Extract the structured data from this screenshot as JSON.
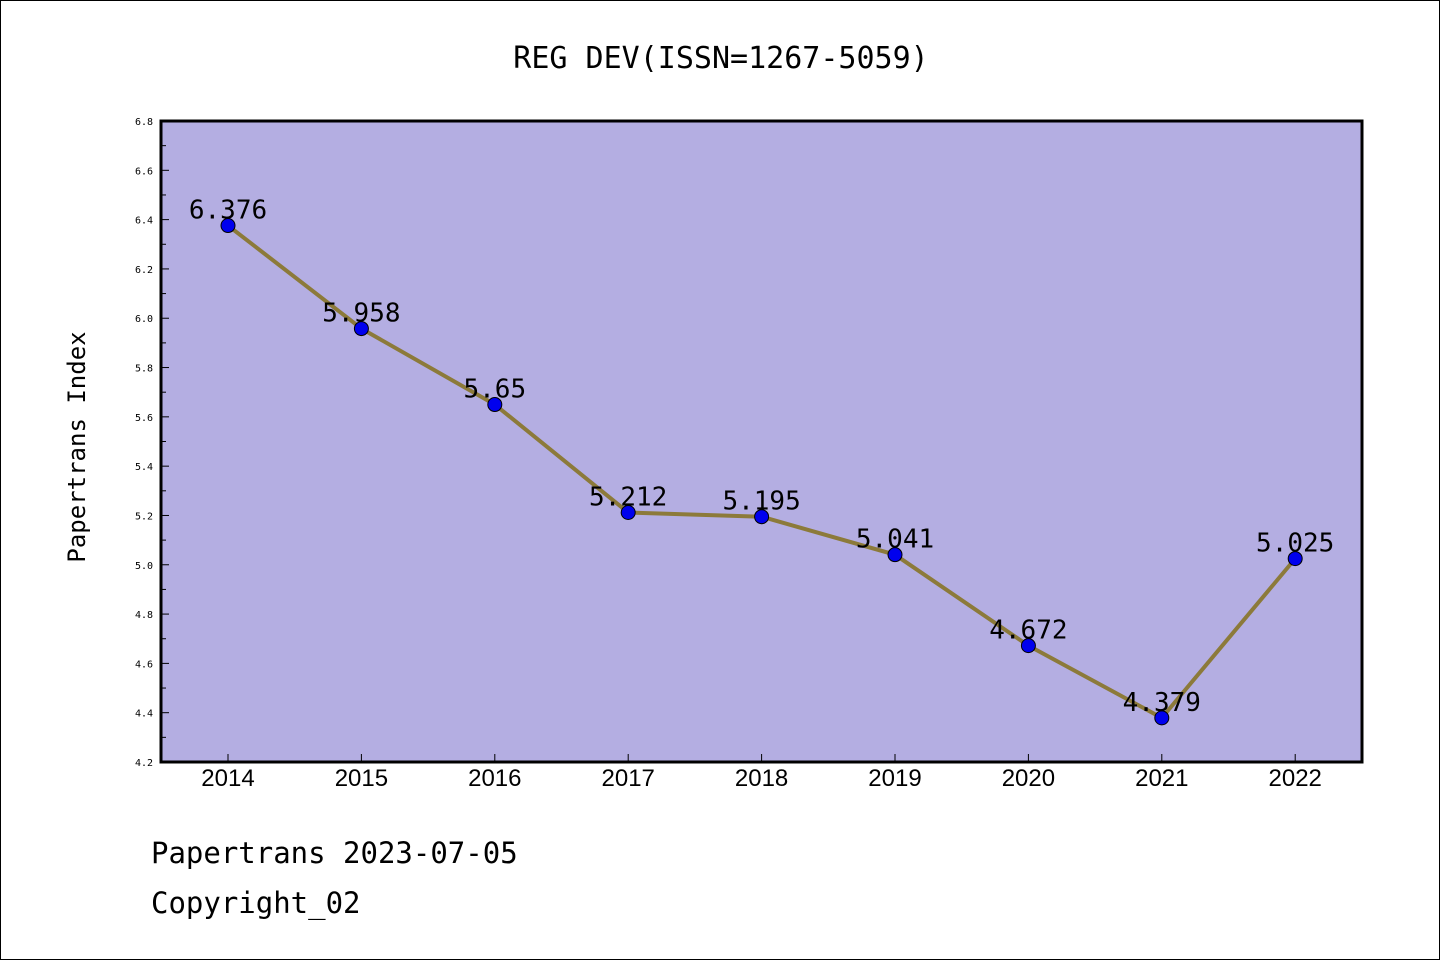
{
  "chart_data": {
    "type": "line",
    "title": "REG DEV(ISSN=1267-5059)",
    "xlabel": "",
    "ylabel": "Papertrans Index",
    "categories": [
      "2014",
      "2015",
      "2016",
      "2017",
      "2018",
      "2019",
      "2020",
      "2021",
      "2022"
    ],
    "series": [
      {
        "values": [
          6.376,
          5.958,
          5.65,
          5.212,
          5.195,
          5.041,
          4.672,
          4.379,
          5.025
        ]
      }
    ],
    "data_labels": [
      "6.376",
      "5.958",
      "5.65",
      "5.212",
      "5.195",
      "5.041",
      "4.672",
      "4.379",
      "5.025"
    ],
    "ylim": [
      4.2,
      6.8
    ],
    "yticks": [
      "4.2",
      "4.4",
      "4.6",
      "4.8",
      "5.0",
      "5.2",
      "5.4",
      "5.6",
      "5.8",
      "6.0",
      "6.2",
      "6.4",
      "6.6",
      "6.8"
    ],
    "grid": false,
    "legend": "none",
    "colors": {
      "plot_background": "#b4aee2",
      "line": "#8c7a3a",
      "marker": "#0000ee",
      "axes": "#000000"
    }
  },
  "footer": {
    "source": "Papertrans 2023-07-05",
    "copyright": "Copyright_02"
  }
}
